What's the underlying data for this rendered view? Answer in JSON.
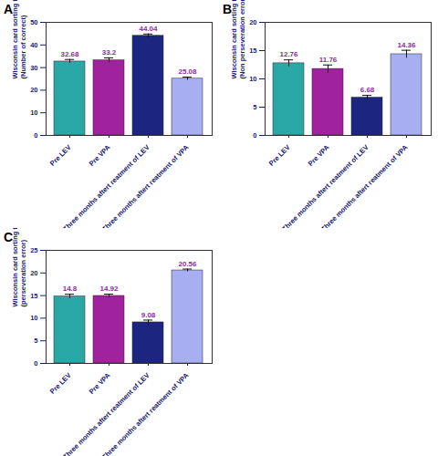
{
  "chart_data": [
    {
      "type": "bar",
      "title": "A",
      "y_label": "Wisconsin card sorting test\n(Number of correct)",
      "categories": [
        "Pre LEV",
        "Pre VPA",
        "Three months aftert reatment of LEV",
        "Three months aftert reatment of VPA"
      ],
      "values": [
        32.68,
        33.2,
        44.04,
        25.08
      ],
      "errors": [
        0.9,
        1.1,
        0.8,
        0.7
      ],
      "colors": [
        "#2aa8a8",
        "#a0229c",
        "#1c2580",
        "#a7aef2"
      ],
      "ylim": [
        0,
        50
      ],
      "yticks": [
        0,
        10,
        20,
        30,
        40,
        50
      ],
      "data_labels": true
    },
    {
      "type": "bar",
      "title": "B",
      "y_label": "Wisconsin card sorting test\n(Non perseveration error)",
      "categories": [
        "Pre LEV",
        "Pre VPA",
        "Three months aftert reatment of LEV",
        "Three months aftert reatment of VPA"
      ],
      "values": [
        12.76,
        11.76,
        6.68,
        14.36
      ],
      "errors": [
        0.6,
        0.7,
        0.4,
        0.7
      ],
      "colors": [
        "#2aa8a8",
        "#a0229c",
        "#1c2580",
        "#a7aef2"
      ],
      "ylim": [
        0,
        20
      ],
      "yticks": [
        0,
        5,
        10,
        15,
        20
      ],
      "data_labels": true
    },
    {
      "type": "bar",
      "title": "C",
      "y_label": "Wisconsin card sorting test\n(perseveration error)",
      "categories": [
        "Pre LEV",
        "Pre VPA",
        "Three months aftert reatment of LEV",
        "Three months aftert reatment of VPA"
      ],
      "values": [
        14.8,
        14.92,
        9.08,
        20.56
      ],
      "errors": [
        0.5,
        0.4,
        0.5,
        0.3
      ],
      "colors": [
        "#2aa8a8",
        "#a0229c",
        "#1c2580",
        "#a7aef2"
      ],
      "ylim": [
        0,
        25
      ],
      "yticks": [
        0,
        5,
        10,
        15,
        20,
        25
      ],
      "data_labels": true
    }
  ]
}
